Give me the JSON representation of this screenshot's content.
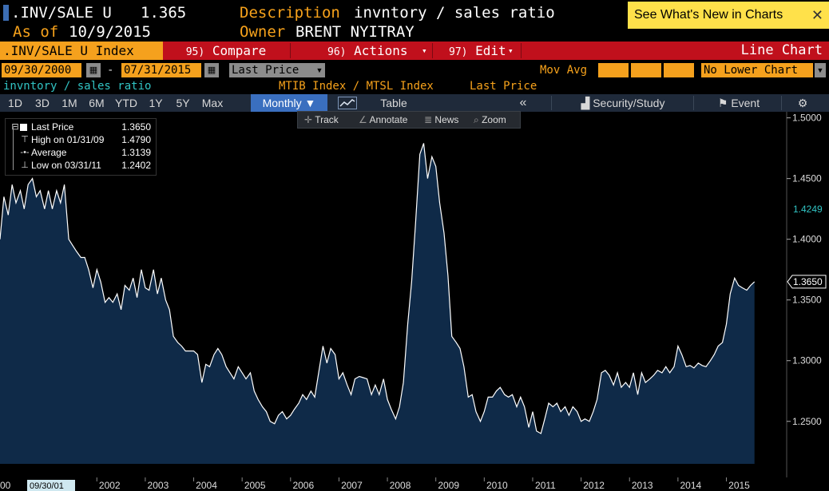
{
  "header": {
    "ticker": ".INV/SALE U",
    "last_value": "1.365",
    "as_of_label": "As of",
    "as_of_date": "10/9/2015",
    "description_label": "Description",
    "description": "invntory / sales ratio",
    "owner_label": "Owner",
    "owner": "BRENT NYITRAY",
    "whats_new": "See What's New in Charts",
    "close_glyph": "✕"
  },
  "command_bar": {
    "security": ".INV/SALE U Index",
    "compare_num": "95)",
    "compare": "Compare",
    "actions_num": "96)",
    "actions": "Actions",
    "edit_num": "97)",
    "edit": "Edit",
    "chart_type": "Line Chart"
  },
  "params": {
    "start_date": "09/30/2000",
    "range_sep": "-",
    "end_date": "07/31/2015",
    "field": "Last Price",
    "mov_avg_label": "Mov Avg",
    "lower_chart": "No Lower Chart"
  },
  "subtitle": {
    "left": "invntory / sales ratio",
    "mid": "MTIB Index / MTSL Index",
    "right": "Last Price"
  },
  "toolbar": {
    "periods": [
      "1D",
      "3D",
      "1M",
      "6M",
      "YTD",
      "1Y",
      "5Y",
      "Max"
    ],
    "frequency": "Monthly ▼",
    "table": "Table",
    "collapse": "«",
    "security_study": "Security/Study",
    "event": "Event",
    "settings_glyph": "⚙"
  },
  "chart_tools": {
    "track": "Track",
    "annotate": "Annotate",
    "news": "News",
    "zoom": "Zoom"
  },
  "legend": [
    {
      "label": "Last Price",
      "value": "1.3650",
      "icon": "square-icon"
    },
    {
      "label": "High on 01/31/09",
      "value": "1.4790",
      "icon": "high-marker-icon"
    },
    {
      "label": "Average",
      "value": "1.3139",
      "icon": "average-line-icon"
    },
    {
      "label": "Low on 03/31/11",
      "value": "1.2402",
      "icon": "low-marker-icon"
    }
  ],
  "colors": {
    "accent_orange": "#f5a11d",
    "command_red": "#c0101c",
    "area_fill": "#0f2a48",
    "line": "#ffffff",
    "marker_cyan": "#31c4c4"
  },
  "chart_data": {
    "type": "area",
    "ylim": [
      1.215,
      1.505
    ],
    "xlim": [
      2000.0,
      2015.833
    ],
    "y_ticks": [
      "1.5000",
      "1.4500",
      "1.4000",
      "1.3500",
      "1.3000",
      "1.2500"
    ],
    "x_ticks": [
      "2002",
      "2003",
      "2004",
      "2005",
      "2006",
      "2007",
      "2008",
      "2009",
      "2010",
      "2011",
      "2012",
      "2013",
      "2014",
      "2015"
    ],
    "x_start_label": "09/30/01",
    "x_edge_label": "00",
    "markers": [
      {
        "label": "1.4249",
        "value": 1.4249,
        "style": "cyan"
      },
      {
        "label": "1.3650",
        "value": 1.365,
        "style": "white"
      }
    ],
    "series": [
      {
        "points": [
          [
            2000.0,
            1.4
          ],
          [
            2000.08,
            1.435
          ],
          [
            2000.17,
            1.42
          ],
          [
            2000.25,
            1.445
          ],
          [
            2000.33,
            1.43
          ],
          [
            2000.42,
            1.44
          ],
          [
            2000.5,
            1.425
          ],
          [
            2000.58,
            1.445
          ],
          [
            2000.67,
            1.45
          ],
          [
            2000.75,
            1.435
          ],
          [
            2000.83,
            1.44
          ],
          [
            2000.92,
            1.425
          ],
          [
            2001.0,
            1.44
          ],
          [
            2001.08,
            1.425
          ],
          [
            2001.17,
            1.44
          ],
          [
            2001.25,
            1.43
          ],
          [
            2001.33,
            1.445
          ],
          [
            2001.42,
            1.4
          ],
          [
            2001.5,
            1.395
          ],
          [
            2001.58,
            1.39
          ],
          [
            2001.67,
            1.385
          ],
          [
            2001.75,
            1.385
          ],
          [
            2001.83,
            1.375
          ],
          [
            2001.92,
            1.36
          ],
          [
            2002.0,
            1.375
          ],
          [
            2002.08,
            1.365
          ],
          [
            2002.17,
            1.348
          ],
          [
            2002.25,
            1.352
          ],
          [
            2002.33,
            1.348
          ],
          [
            2002.42,
            1.355
          ],
          [
            2002.5,
            1.342
          ],
          [
            2002.58,
            1.362
          ],
          [
            2002.67,
            1.358
          ],
          [
            2002.75,
            1.368
          ],
          [
            2002.83,
            1.352
          ],
          [
            2002.92,
            1.375
          ],
          [
            2003.0,
            1.36
          ],
          [
            2003.08,
            1.358
          ],
          [
            2003.17,
            1.375
          ],
          [
            2003.25,
            1.355
          ],
          [
            2003.33,
            1.368
          ],
          [
            2003.42,
            1.35
          ],
          [
            2003.5,
            1.342
          ],
          [
            2003.58,
            1.32
          ],
          [
            2003.67,
            1.315
          ],
          [
            2003.75,
            1.312
          ],
          [
            2003.83,
            1.308
          ],
          [
            2003.92,
            1.308
          ],
          [
            2004.0,
            1.308
          ],
          [
            2004.08,
            1.305
          ],
          [
            2004.17,
            1.282
          ],
          [
            2004.25,
            1.297
          ],
          [
            2004.33,
            1.295
          ],
          [
            2004.42,
            1.305
          ],
          [
            2004.5,
            1.31
          ],
          [
            2004.58,
            1.305
          ],
          [
            2004.67,
            1.295
          ],
          [
            2004.75,
            1.29
          ],
          [
            2004.83,
            1.285
          ],
          [
            2004.92,
            1.295
          ],
          [
            2005.0,
            1.29
          ],
          [
            2005.08,
            1.285
          ],
          [
            2005.17,
            1.29
          ],
          [
            2005.25,
            1.275
          ],
          [
            2005.33,
            1.268
          ],
          [
            2005.42,
            1.262
          ],
          [
            2005.5,
            1.258
          ],
          [
            2005.58,
            1.25
          ],
          [
            2005.67,
            1.248
          ],
          [
            2005.75,
            1.255
          ],
          [
            2005.83,
            1.258
          ],
          [
            2005.92,
            1.252
          ],
          [
            2006.0,
            1.255
          ],
          [
            2006.08,
            1.26
          ],
          [
            2006.17,
            1.265
          ],
          [
            2006.25,
            1.272
          ],
          [
            2006.33,
            1.268
          ],
          [
            2006.42,
            1.275
          ],
          [
            2006.5,
            1.27
          ],
          [
            2006.58,
            1.29
          ],
          [
            2006.67,
            1.312
          ],
          [
            2006.75,
            1.298
          ],
          [
            2006.83,
            1.31
          ],
          [
            2006.92,
            1.305
          ],
          [
            2007.0,
            1.285
          ],
          [
            2007.08,
            1.29
          ],
          [
            2007.17,
            1.28
          ],
          [
            2007.25,
            1.272
          ],
          [
            2007.33,
            1.285
          ],
          [
            2007.42,
            1.287
          ],
          [
            2007.5,
            1.286
          ],
          [
            2007.58,
            1.285
          ],
          [
            2007.67,
            1.272
          ],
          [
            2007.75,
            1.28
          ],
          [
            2007.83,
            1.272
          ],
          [
            2007.92,
            1.285
          ],
          [
            2008.0,
            1.268
          ],
          [
            2008.08,
            1.26
          ],
          [
            2008.17,
            1.252
          ],
          [
            2008.25,
            1.262
          ],
          [
            2008.33,
            1.282
          ],
          [
            2008.42,
            1.33
          ],
          [
            2008.5,
            1.365
          ],
          [
            2008.58,
            1.412
          ],
          [
            2008.67,
            1.47
          ],
          [
            2008.75,
            1.479
          ],
          [
            2008.83,
            1.45
          ],
          [
            2008.92,
            1.468
          ],
          [
            2009.0,
            1.46
          ],
          [
            2009.08,
            1.43
          ],
          [
            2009.17,
            1.405
          ],
          [
            2009.25,
            1.37
          ],
          [
            2009.33,
            1.32
          ],
          [
            2009.42,
            1.315
          ],
          [
            2009.5,
            1.31
          ],
          [
            2009.58,
            1.295
          ],
          [
            2009.67,
            1.27
          ],
          [
            2009.75,
            1.272
          ],
          [
            2009.83,
            1.258
          ],
          [
            2009.92,
            1.25
          ],
          [
            2010.0,
            1.258
          ],
          [
            2010.08,
            1.27
          ],
          [
            2010.17,
            1.27
          ],
          [
            2010.25,
            1.275
          ],
          [
            2010.33,
            1.278
          ],
          [
            2010.42,
            1.272
          ],
          [
            2010.5,
            1.27
          ],
          [
            2010.58,
            1.272
          ],
          [
            2010.67,
            1.262
          ],
          [
            2010.75,
            1.27
          ],
          [
            2010.83,
            1.262
          ],
          [
            2010.92,
            1.245
          ],
          [
            2011.0,
            1.258
          ],
          [
            2011.08,
            1.242
          ],
          [
            2011.17,
            1.24
          ],
          [
            2011.25,
            1.252
          ],
          [
            2011.33,
            1.265
          ],
          [
            2011.42,
            1.262
          ],
          [
            2011.5,
            1.265
          ],
          [
            2011.58,
            1.258
          ],
          [
            2011.67,
            1.262
          ],
          [
            2011.75,
            1.255
          ],
          [
            2011.83,
            1.262
          ],
          [
            2011.92,
            1.258
          ],
          [
            2012.0,
            1.25
          ],
          [
            2012.08,
            1.252
          ],
          [
            2012.17,
            1.25
          ],
          [
            2012.25,
            1.258
          ],
          [
            2012.33,
            1.268
          ],
          [
            2012.42,
            1.29
          ],
          [
            2012.5,
            1.292
          ],
          [
            2012.58,
            1.288
          ],
          [
            2012.67,
            1.28
          ],
          [
            2012.75,
            1.29
          ],
          [
            2012.83,
            1.278
          ],
          [
            2012.92,
            1.282
          ],
          [
            2013.0,
            1.278
          ],
          [
            2013.08,
            1.29
          ],
          [
            2013.17,
            1.272
          ],
          [
            2013.25,
            1.29
          ],
          [
            2013.33,
            1.282
          ],
          [
            2013.42,
            1.285
          ],
          [
            2013.5,
            1.288
          ],
          [
            2013.58,
            1.292
          ],
          [
            2013.67,
            1.29
          ],
          [
            2013.75,
            1.295
          ],
          [
            2013.83,
            1.29
          ],
          [
            2013.92,
            1.295
          ],
          [
            2014.0,
            1.312
          ],
          [
            2014.08,
            1.305
          ],
          [
            2014.17,
            1.295
          ],
          [
            2014.25,
            1.296
          ],
          [
            2014.33,
            1.294
          ],
          [
            2014.42,
            1.298
          ],
          [
            2014.5,
            1.296
          ],
          [
            2014.58,
            1.295
          ],
          [
            2014.67,
            1.3
          ],
          [
            2014.75,
            1.305
          ],
          [
            2014.83,
            1.312
          ],
          [
            2014.92,
            1.315
          ],
          [
            2015.0,
            1.33
          ],
          [
            2015.08,
            1.355
          ],
          [
            2015.17,
            1.368
          ],
          [
            2015.25,
            1.362
          ],
          [
            2015.33,
            1.36
          ],
          [
            2015.42,
            1.358
          ],
          [
            2015.5,
            1.362
          ],
          [
            2015.58,
            1.365
          ]
        ]
      }
    ]
  }
}
